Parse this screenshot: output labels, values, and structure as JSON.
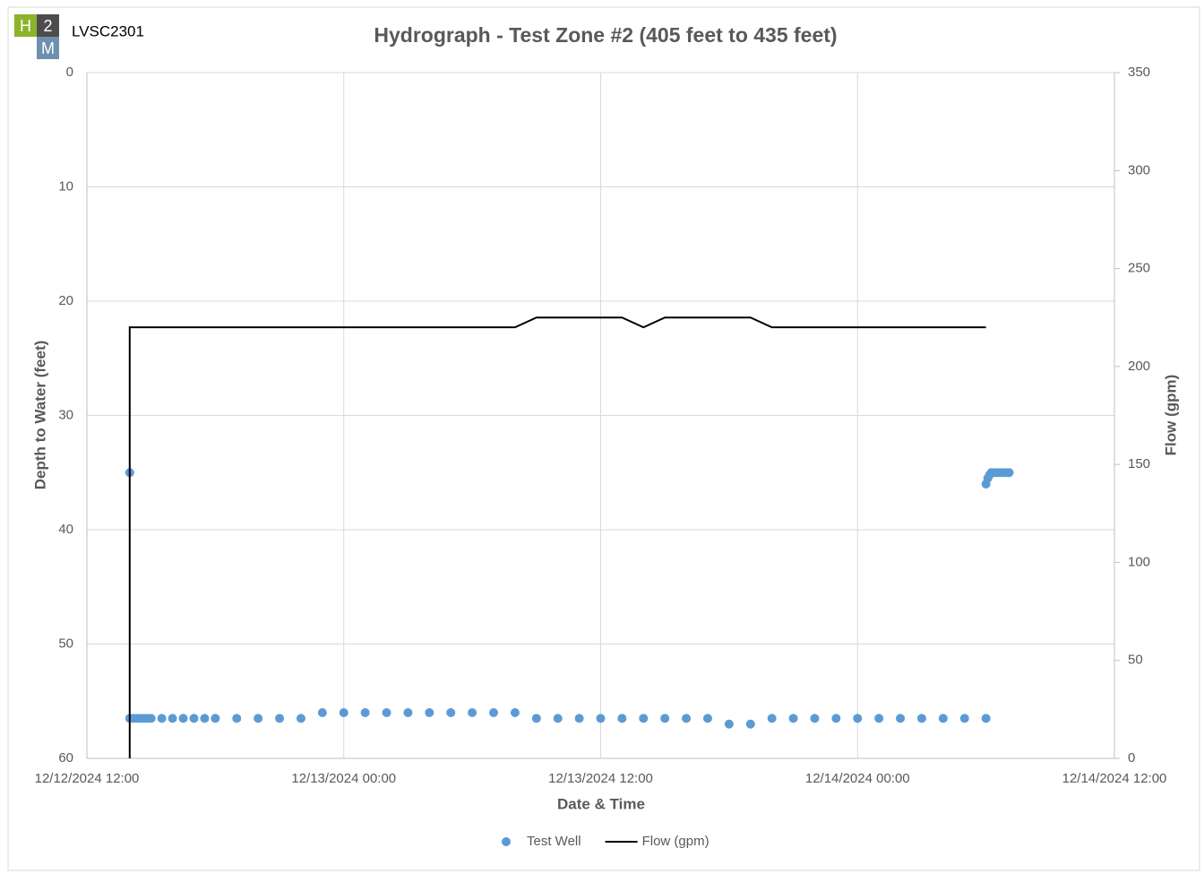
{
  "logo": {
    "letters": [
      "H",
      "2",
      "M"
    ],
    "label": "LVSC2301"
  },
  "chart_data": {
    "type": "scatter-line",
    "title": "Hydrograph - Test Zone #2 (405 feet to 435 feet)",
    "xlabel": "Date & Time",
    "ylabel": "Depth to Water (feet)",
    "y2label": "Flow (gpm)",
    "xlim": [
      "2024-12-12T12:00",
      "2024-12-14T12:00"
    ],
    "xticks": [
      {
        "value": "2024-12-12T12:00",
        "label": "12/12/2024 12:00"
      },
      {
        "value": "2024-12-13T00:00",
        "label": "12/13/2024 00:00"
      },
      {
        "value": "2024-12-13T12:00",
        "label": "12/13/2024 12:00"
      },
      {
        "value": "2024-12-14T00:00",
        "label": "12/14/2024 00:00"
      },
      {
        "value": "2024-12-14T12:00",
        "label": "12/14/2024 12:00"
      }
    ],
    "ylim": [
      0,
      60
    ],
    "yinverted": true,
    "yticks": [
      0,
      10,
      20,
      30,
      40,
      50,
      60
    ],
    "y2lim": [
      0,
      350
    ],
    "y2ticks": [
      0,
      50,
      100,
      150,
      200,
      250,
      300,
      350
    ],
    "grid": true,
    "legend": "bottom",
    "series": [
      {
        "name": "Test Well",
        "kind": "scatter",
        "color": "#5b9bd5",
        "x": [
          "2024-12-12T14:00",
          "2024-12-12T14:00",
          "2024-12-12T14:10",
          "2024-12-12T14:20",
          "2024-12-12T14:30",
          "2024-12-12T14:40",
          "2024-12-12T14:50",
          "2024-12-12T15:00",
          "2024-12-12T15:30",
          "2024-12-12T16:00",
          "2024-12-12T16:30",
          "2024-12-12T17:00",
          "2024-12-12T17:30",
          "2024-12-12T18:00",
          "2024-12-12T19:00",
          "2024-12-12T20:00",
          "2024-12-12T21:00",
          "2024-12-12T22:00",
          "2024-12-12T23:00",
          "2024-12-13T00:00",
          "2024-12-13T01:00",
          "2024-12-13T02:00",
          "2024-12-13T03:00",
          "2024-12-13T04:00",
          "2024-12-13T05:00",
          "2024-12-13T06:00",
          "2024-12-13T07:00",
          "2024-12-13T08:00",
          "2024-12-13T09:00",
          "2024-12-13T10:00",
          "2024-12-13T11:00",
          "2024-12-13T12:00",
          "2024-12-13T13:00",
          "2024-12-13T14:00",
          "2024-12-13T15:00",
          "2024-12-13T16:00",
          "2024-12-13T17:00",
          "2024-12-13T18:00",
          "2024-12-13T19:00",
          "2024-12-13T20:00",
          "2024-12-13T21:00",
          "2024-12-13T22:00",
          "2024-12-13T23:00",
          "2024-12-14T00:00",
          "2024-12-14T01:00",
          "2024-12-14T02:00",
          "2024-12-14T03:00",
          "2024-12-14T04:00",
          "2024-12-14T05:00",
          "2024-12-14T06:00",
          "2024-12-14T06:00",
          "2024-12-14T06:05",
          "2024-12-14T06:10",
          "2024-12-14T06:15",
          "2024-12-14T06:25",
          "2024-12-14T06:35",
          "2024-12-14T06:45",
          "2024-12-14T06:55",
          "2024-12-14T07:05"
        ],
        "values": [
          35.0,
          56.5,
          56.5,
          56.5,
          56.5,
          56.5,
          56.5,
          56.5,
          56.5,
          56.5,
          56.5,
          56.5,
          56.5,
          56.5,
          56.5,
          56.5,
          56.5,
          56.5,
          56.0,
          56.0,
          56.0,
          56.0,
          56.0,
          56.0,
          56.0,
          56.0,
          56.0,
          56.0,
          56.5,
          56.5,
          56.5,
          56.5,
          56.5,
          56.5,
          56.5,
          56.5,
          56.5,
          57.0,
          57.0,
          56.5,
          56.5,
          56.5,
          56.5,
          56.5,
          56.5,
          56.5,
          56.5,
          56.5,
          56.5,
          56.5,
          36.0,
          35.5,
          35.2,
          35.0,
          35.0,
          35.0,
          35.0,
          35.0,
          35.0
        ]
      },
      {
        "name": "Flow (gpm)",
        "kind": "line",
        "color": "#000000",
        "axis": "y2",
        "x": [
          "2024-12-12T14:00",
          "2024-12-12T14:00",
          "2024-12-13T08:00",
          "2024-12-13T09:00",
          "2024-12-13T13:00",
          "2024-12-13T14:00",
          "2024-12-13T15:00",
          "2024-12-13T19:00",
          "2024-12-13T20:00",
          "2024-12-14T06:00"
        ],
        "values": [
          0,
          220,
          220,
          225,
          225,
          220,
          225,
          225,
          220,
          220
        ]
      }
    ]
  }
}
